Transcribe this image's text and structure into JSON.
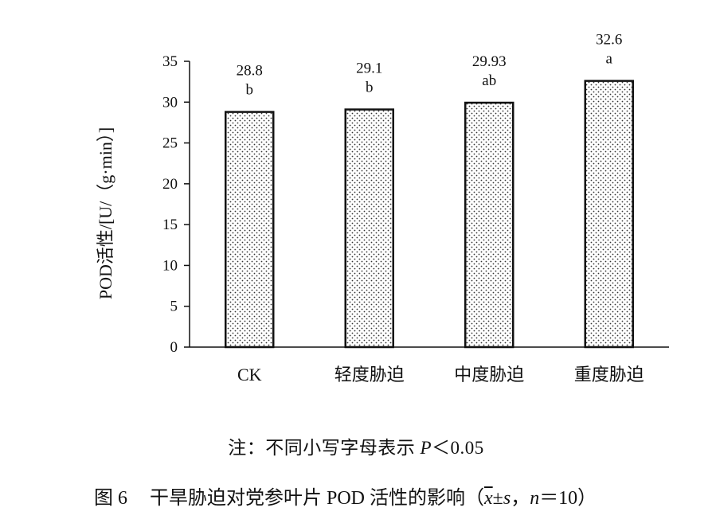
{
  "chart_data": {
    "type": "bar",
    "categories": [
      "CK",
      "轻度胁迫",
      "中度胁迫",
      "重度胁迫"
    ],
    "values": [
      28.8,
      29.1,
      29.93,
      32.6
    ],
    "value_labels": [
      "28.8",
      "29.1",
      "29.93",
      "32.6"
    ],
    "significance_letters": [
      "b",
      "b",
      "ab",
      "a"
    ],
    "title": "",
    "xlabel": "",
    "ylabel": "POD活性/[U/（g·min）]",
    "ylim": [
      0,
      35
    ],
    "yticks": [
      0,
      5,
      10,
      15,
      20,
      25,
      30,
      35
    ],
    "grid": false,
    "bar_fill": "dotted",
    "colors": {
      "bar_fill": "#ffffff",
      "dot": "#333333",
      "edge": "#111111"
    }
  },
  "note": {
    "prefix": "注：不同小写字母表示 ",
    "p_symbol": "P",
    "suffix": "＜0.05"
  },
  "caption": {
    "figure_number": "图 6",
    "text": "干旱胁迫对党参叶片 POD 活性的影响（",
    "xbar_symbol": "x",
    "pm": "±",
    "s_symbol": "s",
    "sep": "，",
    "n_symbol": "n",
    "n_value": "＝10）"
  }
}
